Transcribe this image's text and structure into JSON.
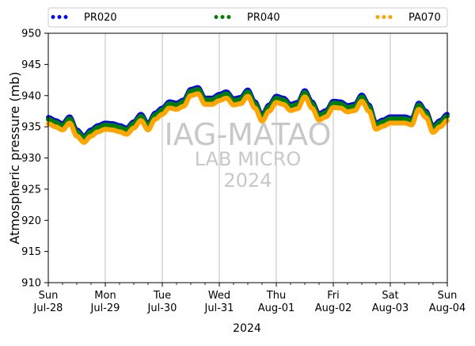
{
  "chart_data": {
    "type": "scatter",
    "xlabel": "2024",
    "ylabel": "Atmospheric pressure (mb)",
    "ylim": [
      910,
      950
    ],
    "yticks": [
      910,
      915,
      920,
      925,
      930,
      935,
      940,
      945,
      950
    ],
    "xlim": [
      "2024-07-28",
      "2024-08-04"
    ],
    "xticks": [
      {
        "day": "Sun",
        "date": "Jul-28"
      },
      {
        "day": "Mon",
        "date": "Jul-29"
      },
      {
        "day": "Tue",
        "date": "Jul-30"
      },
      {
        "day": "Wed",
        "date": "Jul-31"
      },
      {
        "day": "Thu",
        "date": "Aug-01"
      },
      {
        "day": "Fri",
        "date": "Aug-02"
      },
      {
        "day": "Sat",
        "date": "Aug-03"
      },
      {
        "day": "Sun",
        "date": "Aug-04"
      }
    ],
    "grid": "vertical",
    "legend_position": "top",
    "watermark": {
      "line1": "IAG-MATAO",
      "line2": "LAB MICRO",
      "line3": "2024"
    },
    "x": [
      "2024-07-28 00:00",
      "2024-07-28 03:00",
      "2024-07-28 06:00",
      "2024-07-28 09:00",
      "2024-07-28 12:00",
      "2024-07-28 15:00",
      "2024-07-28 18:00",
      "2024-07-28 21:00",
      "2024-07-29 00:00",
      "2024-07-29 03:00",
      "2024-07-29 06:00",
      "2024-07-29 09:00",
      "2024-07-29 12:00",
      "2024-07-29 15:00",
      "2024-07-29 18:00",
      "2024-07-29 21:00",
      "2024-07-30 00:00",
      "2024-07-30 03:00",
      "2024-07-30 06:00",
      "2024-07-30 09:00",
      "2024-07-30 12:00",
      "2024-07-30 15:00",
      "2024-07-30 18:00",
      "2024-07-30 21:00",
      "2024-07-31 00:00",
      "2024-07-31 03:00",
      "2024-07-31 06:00",
      "2024-07-31 09:00",
      "2024-07-31 12:00",
      "2024-07-31 15:00",
      "2024-07-31 18:00",
      "2024-07-31 21:00",
      "2024-08-01 00:00",
      "2024-08-01 03:00",
      "2024-08-01 06:00",
      "2024-08-01 09:00",
      "2024-08-01 12:00",
      "2024-08-01 15:00",
      "2024-08-01 18:00",
      "2024-08-01 21:00",
      "2024-08-02 00:00",
      "2024-08-02 03:00",
      "2024-08-02 06:00",
      "2024-08-02 09:00",
      "2024-08-02 12:00",
      "2024-08-02 15:00",
      "2024-08-02 18:00",
      "2024-08-02 21:00",
      "2024-08-03 00:00",
      "2024-08-03 03:00",
      "2024-08-03 06:00",
      "2024-08-03 09:00",
      "2024-08-03 12:00",
      "2024-08-03 15:00",
      "2024-08-03 18:00",
      "2024-08-03 21:00",
      "2024-08-04 00:00"
    ],
    "series": [
      {
        "name": "PR020",
        "color": "#0000ff",
        "values": [
          936.5,
          936.0,
          935.5,
          936.6,
          934.5,
          933.5,
          934.5,
          935.2,
          935.6,
          935.5,
          935.2,
          934.8,
          935.8,
          937.0,
          935.5,
          937.2,
          938.0,
          939.0,
          938.8,
          939.3,
          941.0,
          941.3,
          939.6,
          939.6,
          940.2,
          940.6,
          939.5,
          939.7,
          940.9,
          939.0,
          936.9,
          938.5,
          939.9,
          939.6,
          938.6,
          938.9,
          940.8,
          939.0,
          937.1,
          937.6,
          939.1,
          939.0,
          938.4,
          938.6,
          940.1,
          938.5,
          935.6,
          936.1,
          936.6,
          936.6,
          936.6,
          936.3,
          938.8,
          937.5,
          935.1,
          936.0,
          937.0
        ]
      },
      {
        "name": "PR040",
        "color": "#008000",
        "values": [
          936.2,
          935.7,
          935.2,
          936.3,
          934.2,
          933.2,
          934.2,
          934.9,
          935.3,
          935.2,
          934.9,
          934.5,
          935.5,
          936.7,
          935.2,
          936.9,
          937.7,
          938.7,
          938.5,
          939.0,
          940.7,
          941.0,
          939.3,
          939.3,
          939.9,
          940.3,
          939.2,
          939.4,
          940.6,
          938.7,
          936.6,
          938.2,
          939.6,
          939.3,
          938.3,
          938.6,
          940.5,
          938.7,
          936.8,
          937.3,
          938.8,
          938.7,
          938.1,
          938.3,
          939.8,
          938.2,
          935.3,
          935.8,
          936.3,
          936.3,
          936.3,
          936.0,
          938.5,
          937.2,
          934.8,
          935.7,
          936.7
        ]
      },
      {
        "name": "PA070",
        "color": "#ffa500",
        "values": [
          935.5,
          935.0,
          934.5,
          935.6,
          933.5,
          932.5,
          933.5,
          934.2,
          934.6,
          934.5,
          934.2,
          933.8,
          934.8,
          936.0,
          934.5,
          936.2,
          937.0,
          938.0,
          937.8,
          938.3,
          940.0,
          940.3,
          938.6,
          938.6,
          939.2,
          939.6,
          938.5,
          938.7,
          939.9,
          938.0,
          935.9,
          937.5,
          938.9,
          938.6,
          937.6,
          937.9,
          939.8,
          938.0,
          936.1,
          936.6,
          938.1,
          938.0,
          937.4,
          937.6,
          939.1,
          937.5,
          934.6,
          935.1,
          935.6,
          935.6,
          935.6,
          935.3,
          937.8,
          936.5,
          934.1,
          935.0,
          936.0
        ]
      }
    ]
  }
}
